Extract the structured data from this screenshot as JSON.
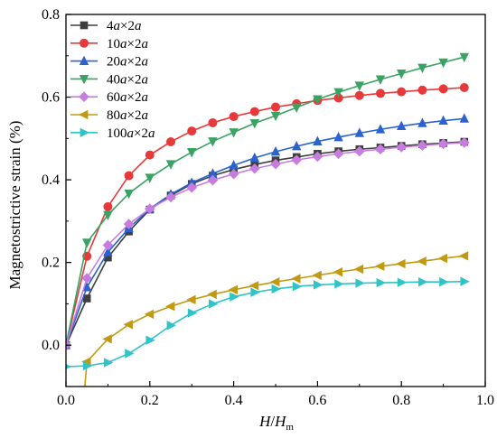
{
  "chart_data": {
    "type": "line",
    "xlabel": "H/H_m",
    "xlabel_main": "H",
    "xlabel_slash": "/",
    "xlabel_H": "H",
    "xlabel_sub": "m",
    "ylabel": "Magnetostrictive strain (%)",
    "xlim": [
      0.0,
      1.0
    ],
    "ylim": [
      -0.1,
      0.8
    ],
    "xticks": [
      "0.0",
      "0.2",
      "0.4",
      "0.6",
      "0.8",
      "1.0"
    ],
    "yticks": [
      "0.0",
      "0.2",
      "0.4",
      "0.6",
      "0.8"
    ],
    "legend_position": "top-left",
    "x": [
      0.0,
      0.05,
      0.1,
      0.15,
      0.2,
      0.25,
      0.3,
      0.35,
      0.4,
      0.45,
      0.5,
      0.55,
      0.6,
      0.65,
      0.7,
      0.75,
      0.8,
      0.85,
      0.9,
      0.95
    ],
    "series": [
      {
        "name": "4a×2a",
        "label_parts": [
          "4",
          "a",
          "×2",
          "a"
        ],
        "color": "#3f3f3f",
        "marker": "square",
        "values": [
          0.0,
          0.113,
          0.212,
          0.275,
          0.328,
          0.362,
          0.39,
          0.41,
          0.425,
          0.437,
          0.447,
          0.455,
          0.463,
          0.469,
          0.474,
          0.478,
          0.482,
          0.486,
          0.489,
          0.492
        ]
      },
      {
        "name": "10a×2a",
        "label_parts": [
          "10",
          "a",
          "×2",
          "a"
        ],
        "color": "#e8393a",
        "marker": "circle",
        "values": [
          0.0,
          0.215,
          0.335,
          0.41,
          0.46,
          0.492,
          0.518,
          0.538,
          0.553,
          0.565,
          0.576,
          0.584,
          0.592,
          0.598,
          0.604,
          0.609,
          0.613,
          0.617,
          0.62,
          0.623
        ]
      },
      {
        "name": "20a×2a",
        "label_parts": [
          "20",
          "a",
          "×2",
          "a"
        ],
        "color": "#2a63cf",
        "marker": "triangle-up",
        "values": [
          0.0,
          0.14,
          0.225,
          0.283,
          0.33,
          0.365,
          0.393,
          0.415,
          0.435,
          0.453,
          0.468,
          0.481,
          0.493,
          0.503,
          0.513,
          0.522,
          0.53,
          0.537,
          0.543,
          0.548
        ]
      },
      {
        "name": "40a×2a",
        "label_parts": [
          "40",
          "a",
          "×2",
          "a"
        ],
        "color": "#3aa262",
        "marker": "triangle-down",
        "values": [
          0.0,
          0.248,
          0.315,
          0.367,
          0.405,
          0.438,
          0.467,
          0.493,
          0.515,
          0.537,
          0.555,
          0.575,
          0.595,
          0.612,
          0.628,
          0.643,
          0.657,
          0.671,
          0.684,
          0.697
        ]
      },
      {
        "name": "60a×2a",
        "label_parts": [
          "60",
          "a",
          "×2",
          "a"
        ],
        "color": "#c77ddf",
        "marker": "diamond",
        "values": [
          0.0,
          0.162,
          0.242,
          0.293,
          0.33,
          0.358,
          0.381,
          0.399,
          0.414,
          0.427,
          0.438,
          0.448,
          0.456,
          0.463,
          0.469,
          0.474,
          0.479,
          0.483,
          0.487,
          0.49
        ]
      },
      {
        "name": "80a×2a",
        "label_parts": [
          "80",
          "a",
          "×2",
          "a"
        ],
        "color": "#c09a12",
        "marker": "triangle-left",
        "values": [
          null,
          -0.04,
          0.015,
          0.05,
          0.075,
          0.094,
          0.11,
          0.123,
          0.134,
          0.144,
          0.153,
          0.161,
          0.169,
          0.177,
          0.184,
          0.191,
          0.197,
          0.203,
          0.21,
          0.216
        ],
        "lead_in": [
          [
            0.045,
            -0.1
          ],
          [
            0.05,
            -0.04
          ]
        ]
      },
      {
        "name": "100a×2a",
        "label_parts": [
          "100",
          "a",
          "×2",
          "a"
        ],
        "color": "#2fc4c7",
        "marker": "triangle-right",
        "values": [
          -0.052,
          -0.05,
          -0.042,
          -0.02,
          0.012,
          0.048,
          0.078,
          0.1,
          0.117,
          0.128,
          0.136,
          0.142,
          0.146,
          0.148,
          0.15,
          0.151,
          0.152,
          0.153,
          0.153,
          0.154
        ]
      }
    ]
  }
}
